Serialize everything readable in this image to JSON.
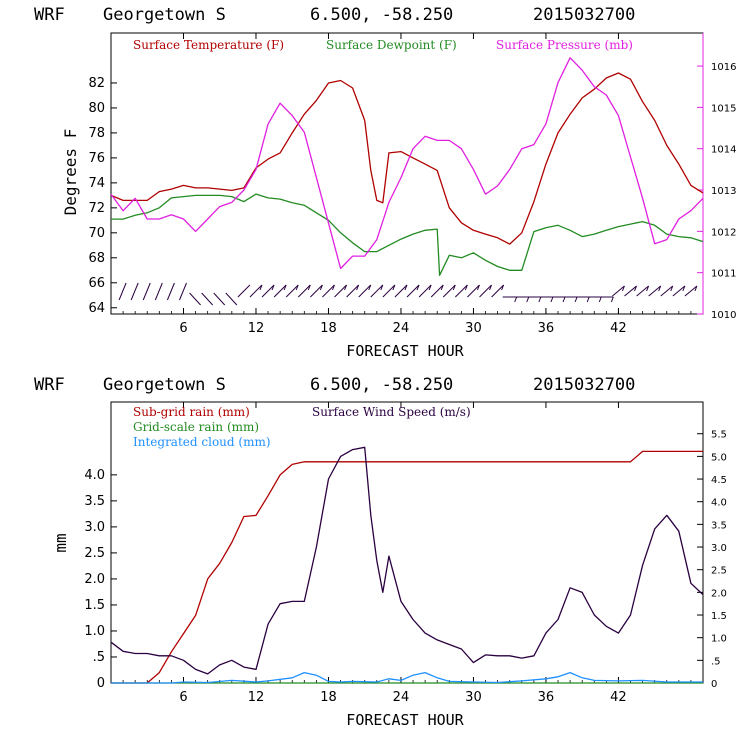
{
  "chart_data": [
    {
      "type": "line",
      "header": {
        "model": "WRF",
        "station": "Georgetown S",
        "coords": "6.500, -58.250",
        "run": "2015032700"
      },
      "xlabel": "FORECAST HOUR",
      "ylabel": "Degrees F",
      "xlim": [
        0,
        49
      ],
      "xticks": [
        "6",
        "12",
        "18",
        "24",
        "30",
        "36",
        "42"
      ],
      "xtick_values": [
        6,
        12,
        18,
        24,
        30,
        36,
        42
      ],
      "ylim": [
        63.5,
        86
      ],
      "yticks": [
        "64",
        "66",
        "68",
        "70",
        "72",
        "74",
        "76",
        "78",
        "80",
        "82"
      ],
      "y2lim": [
        1010,
        1016.8
      ],
      "y2ticks": [
        "1010",
        "1011",
        "1012",
        "1013",
        "1014",
        "1015",
        "1016"
      ],
      "colors": {
        "temperature": "#b00000",
        "dewpoint": "#228b22",
        "pressure": "#e020e0",
        "wind_barbs": "#2a0040"
      },
      "series": [
        {
          "name": "Surface Temperature (F)",
          "axis": "left",
          "color": "#b00000",
          "x": [
            0,
            1,
            2,
            3,
            4,
            5,
            6,
            7,
            8,
            9,
            10,
            11,
            12,
            13,
            14,
            15,
            16,
            17,
            18,
            19,
            20,
            21,
            21.5,
            22,
            22.5,
            23,
            24,
            25,
            26,
            27,
            28,
            29,
            30,
            31,
            32,
            33,
            34,
            35,
            36,
            37,
            38,
            39,
            40,
            41,
            42,
            43,
            44,
            45,
            46,
            47,
            48,
            49
          ],
          "y": [
            73.0,
            72.6,
            72.6,
            72.6,
            73.3,
            73.5,
            73.8,
            73.6,
            73.6,
            73.5,
            73.4,
            73.6,
            75.2,
            75.9,
            76.4,
            78.0,
            79.5,
            80.6,
            82.0,
            82.2,
            81.6,
            79.0,
            75.0,
            72.6,
            72.4,
            76.4,
            76.5,
            76.0,
            75.5,
            75.0,
            72.0,
            70.8,
            70.2,
            69.9,
            69.6,
            69.1,
            70.0,
            72.5,
            75.5,
            78.0,
            79.5,
            80.8,
            81.5,
            82.4,
            82.8,
            82.3,
            80.5,
            79.0,
            77.0,
            75.5,
            73.8,
            73.2
          ]
        },
        {
          "name": "Surface Dewpoint (F)",
          "axis": "left",
          "color": "#228b22",
          "x": [
            0,
            1,
            2,
            3,
            4,
            5,
            6,
            7,
            8,
            9,
            10,
            11,
            12,
            13,
            14,
            15,
            16,
            17,
            18,
            19,
            20,
            21,
            22,
            23,
            24,
            25,
            26,
            27,
            27.2,
            28,
            29,
            30,
            31,
            32,
            33,
            34,
            35,
            36,
            37,
            38,
            39,
            40,
            41,
            42,
            43,
            44,
            45,
            46,
            47,
            48,
            49
          ],
          "y": [
            71.1,
            71.1,
            71.4,
            71.6,
            72.0,
            72.8,
            72.9,
            73.0,
            73.0,
            73.0,
            72.9,
            72.5,
            73.1,
            72.8,
            72.7,
            72.4,
            72.2,
            71.6,
            71.0,
            70.0,
            69.2,
            68.5,
            68.5,
            69.0,
            69.5,
            69.9,
            70.2,
            70.3,
            66.6,
            68.2,
            68.0,
            68.4,
            67.8,
            67.3,
            67.0,
            67.0,
            70.1,
            70.4,
            70.6,
            70.2,
            69.7,
            69.9,
            70.2,
            70.5,
            70.7,
            70.9,
            70.6,
            69.9,
            69.7,
            69.6,
            69.3
          ]
        },
        {
          "name": "Surface Pressure (mb)",
          "axis": "right",
          "color": "#e020e0",
          "x": [
            0,
            1,
            2,
            3,
            4,
            5,
            6,
            7,
            8,
            9,
            10,
            11,
            12,
            13,
            14,
            15,
            16,
            17,
            18,
            19,
            20,
            21,
            22,
            23,
            24,
            25,
            26,
            27,
            28,
            29,
            30,
            31,
            32,
            33,
            34,
            35,
            36,
            37,
            38,
            39,
            40,
            41,
            42,
            43,
            44,
            45,
            46,
            47,
            48,
            49
          ],
          "y": [
            1012.9,
            1012.5,
            1012.8,
            1012.3,
            1012.3,
            1012.4,
            1012.3,
            1012.0,
            1012.3,
            1012.6,
            1012.7,
            1013.0,
            1013.5,
            1014.6,
            1015.1,
            1014.8,
            1014.4,
            1013.3,
            1012.2,
            1011.1,
            1011.4,
            1011.4,
            1011.8,
            1012.7,
            1013.3,
            1014.0,
            1014.3,
            1014.2,
            1014.2,
            1014.0,
            1013.5,
            1012.9,
            1013.1,
            1013.5,
            1014.0,
            1014.1,
            1014.6,
            1015.6,
            1016.2,
            1015.9,
            1015.5,
            1015.3,
            1014.8,
            1013.8,
            1012.8,
            1011.7,
            1011.8,
            1012.3,
            1012.5,
            1012.8
          ]
        }
      ],
      "wind_barb_hours": [
        1,
        2,
        3,
        4,
        5,
        6,
        7,
        8,
        9,
        10,
        11,
        12,
        13,
        14,
        15,
        16,
        17,
        18,
        19,
        20,
        21,
        22,
        23,
        24,
        25,
        26,
        27,
        28,
        29,
        30,
        31,
        32,
        33,
        34,
        35,
        36,
        37,
        38,
        39,
        40,
        41,
        42,
        43,
        44,
        45,
        46,
        47,
        48
      ]
    },
    {
      "type": "line",
      "header": {
        "model": "WRF",
        "station": "Georgetown S",
        "coords": "6.500, -58.250",
        "run": "2015032700"
      },
      "xlabel": "FORECAST HOUR",
      "ylabel": "mm",
      "xlim": [
        0,
        49
      ],
      "xticks": [
        "6",
        "12",
        "18",
        "24",
        "30",
        "36",
        "42"
      ],
      "xtick_values": [
        6,
        12,
        18,
        24,
        30,
        36,
        42
      ],
      "ylim": [
        0,
        5.4
      ],
      "yticks": [
        "0",
        ".5",
        "1.0",
        "1.5",
        "2.0",
        "2.5",
        "3.0",
        "3.5",
        "4.0"
      ],
      "y2lim": [
        0,
        6.2
      ],
      "y2ticks": [
        "0",
        ".5",
        "1.0",
        "1.5",
        "2.0",
        "2.5",
        "3.0",
        "3.5",
        "4.0",
        "4.5",
        "5.0",
        "5.5"
      ],
      "colors": {
        "subgrid": "#b00000",
        "gridscale": "#228b22",
        "cloud": "#1e90ff",
        "wind": "#2a0040"
      },
      "series": [
        {
          "name": "Sub-grid rain (mm)",
          "axis": "left",
          "color": "#b00000",
          "x": [
            0,
            1,
            2,
            3,
            4,
            5,
            6,
            7,
            8,
            9,
            10,
            11,
            12,
            13,
            14,
            15,
            16,
            17,
            18,
            19,
            20,
            21,
            22,
            24,
            26,
            28,
            30,
            32,
            34,
            36,
            38,
            40,
            42,
            43,
            44,
            45,
            46,
            47,
            48,
            49
          ],
          "y": [
            0,
            0,
            0,
            0,
            0.2,
            0.6,
            0.95,
            1.3,
            2.0,
            2.3,
            2.7,
            3.2,
            3.22,
            3.6,
            4.0,
            4.2,
            4.25,
            4.25,
            4.25,
            4.25,
            4.25,
            4.25,
            4.25,
            4.25,
            4.25,
            4.25,
            4.25,
            4.25,
            4.25,
            4.25,
            4.25,
            4.25,
            4.25,
            4.25,
            4.45,
            4.45,
            4.45,
            4.45,
            4.45,
            4.45
          ]
        },
        {
          "name": "Grid-scale rain (mm)",
          "axis": "left",
          "color": "#228b22",
          "x": [
            0,
            49
          ],
          "y": [
            0,
            0
          ]
        },
        {
          "name": "Integrated cloud (mm)",
          "axis": "left",
          "color": "#1e90ff",
          "x": [
            0,
            5,
            6,
            8,
            10,
            12,
            13,
            15,
            16,
            17,
            18,
            19,
            20,
            22,
            23,
            24,
            25,
            26,
            27,
            28,
            30,
            32,
            34,
            36,
            37,
            38,
            39,
            40,
            42,
            44,
            46,
            49
          ],
          "y": [
            0,
            0,
            0.02,
            0.01,
            0.05,
            0.02,
            0.04,
            0.1,
            0.2,
            0.15,
            0.03,
            0.02,
            0.03,
            0.02,
            0.08,
            0.05,
            0.15,
            0.2,
            0.1,
            0.03,
            0.02,
            0.01,
            0.04,
            0.08,
            0.12,
            0.2,
            0.1,
            0.05,
            0.04,
            0.05,
            0.02,
            0.02
          ]
        },
        {
          "name": "Surface Wind Speed (m/s)",
          "axis": "right",
          "color": "#2a0040",
          "x": [
            0,
            1,
            2,
            3,
            4,
            5,
            6,
            7,
            8,
            9,
            10,
            11,
            12,
            13,
            14,
            15,
            16,
            17,
            18,
            19,
            20,
            21,
            21.5,
            22,
            22.5,
            23,
            24,
            25,
            26,
            27,
            28,
            29,
            30,
            31,
            32,
            33,
            34,
            35,
            36,
            37,
            38,
            39,
            40,
            41,
            42,
            43,
            44,
            45,
            46,
            47,
            48,
            49
          ],
          "y": [
            0.9,
            0.7,
            0.65,
            0.65,
            0.6,
            0.6,
            0.5,
            0.3,
            0.2,
            0.4,
            0.5,
            0.35,
            0.3,
            1.3,
            1.75,
            1.8,
            1.8,
            3.0,
            4.5,
            5.0,
            5.15,
            5.2,
            3.7,
            2.7,
            2.0,
            2.8,
            1.8,
            1.4,
            1.1,
            0.95,
            0.85,
            0.75,
            0.45,
            0.62,
            0.6,
            0.6,
            0.55,
            0.6,
            1.1,
            1.4,
            2.1,
            2.0,
            1.5,
            1.25,
            1.1,
            1.5,
            2.6,
            3.4,
            3.7,
            3.35,
            2.2,
            1.95
          ]
        }
      ]
    }
  ]
}
